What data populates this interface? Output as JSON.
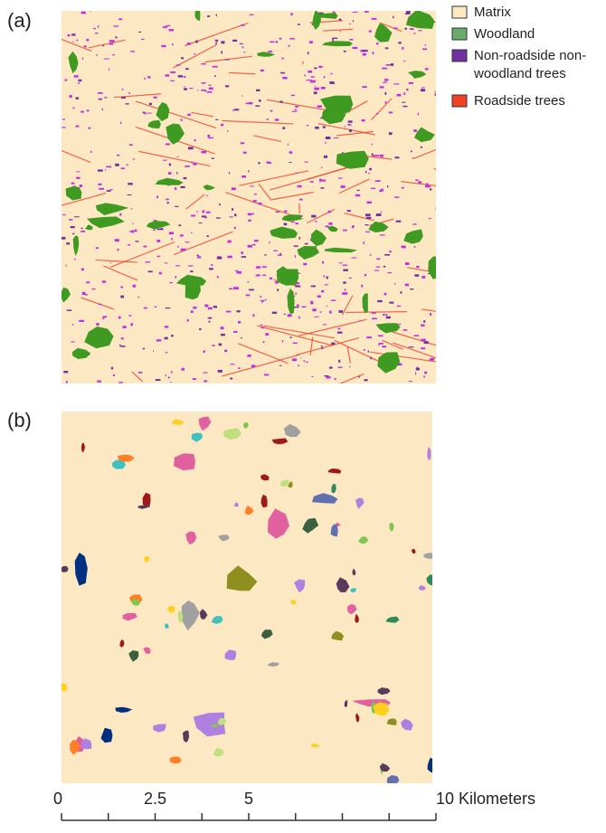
{
  "panels": [
    {
      "label": "(a)"
    },
    {
      "label": "(b)"
    }
  ],
  "legend": [
    {
      "lines": [
        "Matrix"
      ],
      "color": "#fde8c4"
    },
    {
      "lines": [
        "Woodland"
      ],
      "color": "#6aab6a"
    },
    {
      "lines": [
        "Non-roadside non-",
        "woodland trees"
      ],
      "color": "#7030a0"
    },
    {
      "lines": [
        "Roadside trees"
      ],
      "color": "#f0402a"
    }
  ],
  "scale_bar": {
    "xlim": [
      0,
      10
    ],
    "xticks": [
      0,
      2.5,
      5,
      {
        "value": 10,
        "label": "10 Kilometers"
      }
    ],
    "minor_ticks": [
      1.25,
      3.75,
      6.25,
      7.5,
      8.75
    ]
  }
}
